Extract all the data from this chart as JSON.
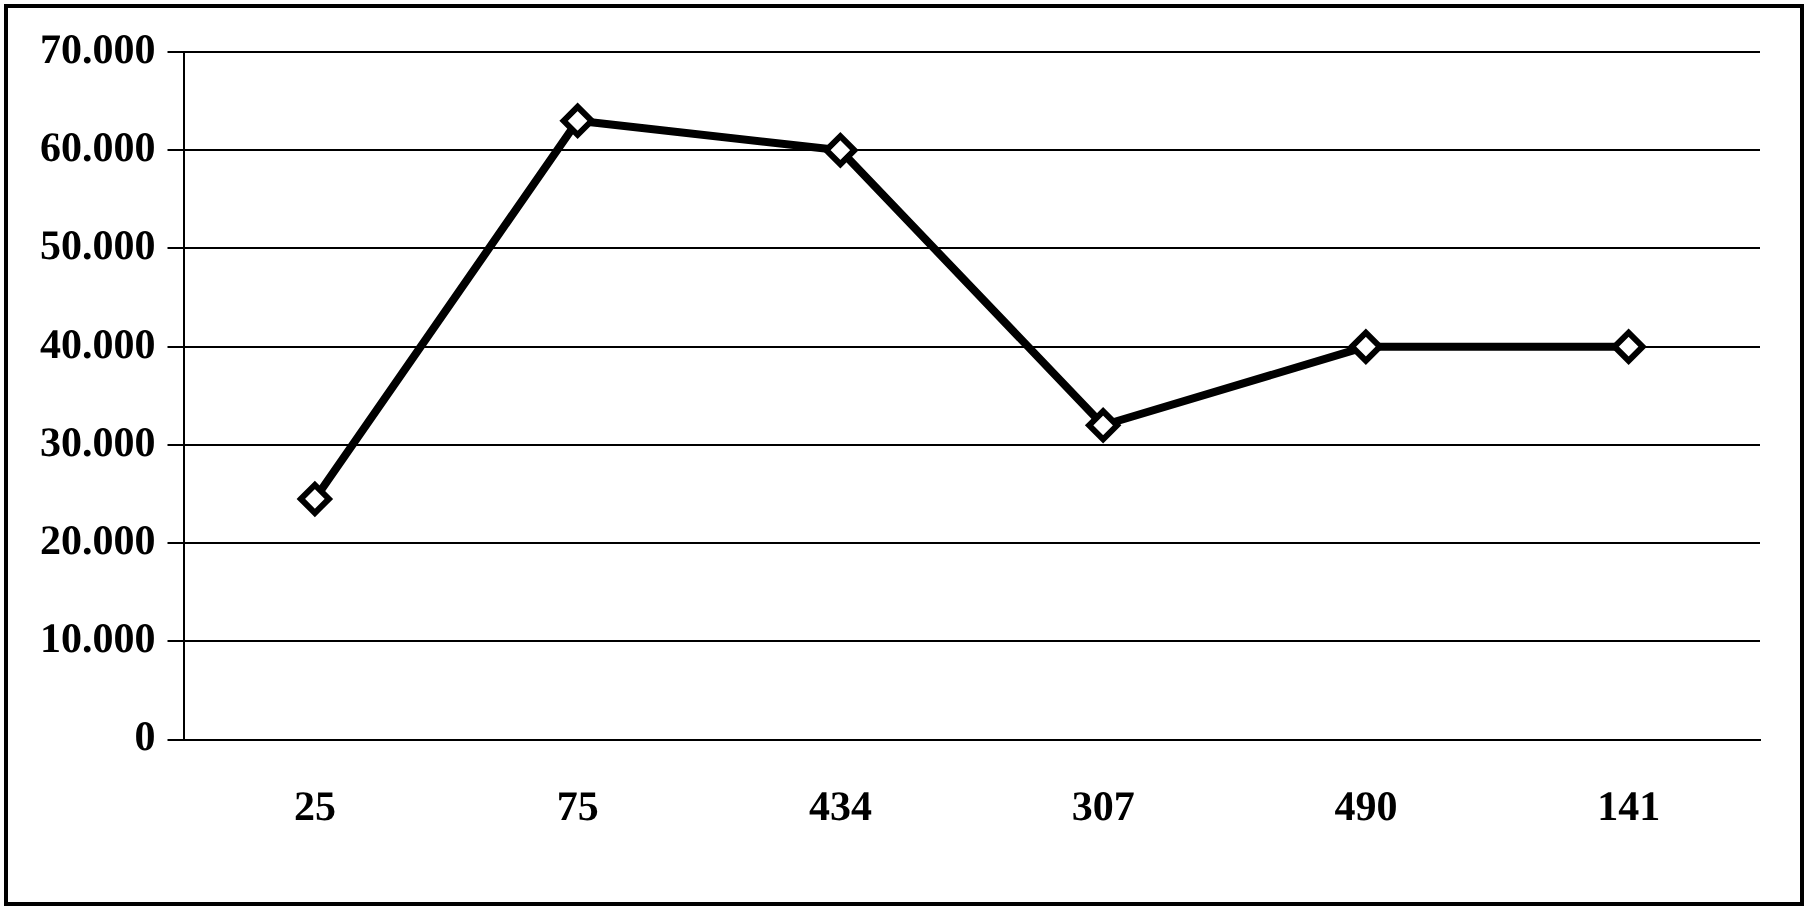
{
  "chart_data": {
    "type": "line",
    "categories": [
      "25",
      "75",
      "434",
      "307",
      "490",
      "141"
    ],
    "series": [
      {
        "color": "#000000",
        "values": [
          24500,
          63000,
          60000,
          32000,
          40000,
          40000
        ]
      }
    ],
    "ylim": [
      0,
      70000
    ],
    "yticks": [
      0,
      {
        "value": 10000,
        "label": "10.000"
      },
      {
        "value": 20000,
        "label": "20.000"
      },
      {
        "value": 30000,
        "label": "30.000"
      },
      {
        "value": 40000,
        "label": "40.000"
      },
      {
        "value": 50000,
        "label": "50.000"
      },
      {
        "value": 60000,
        "label": "60.000"
      },
      {
        "value": 70000,
        "label": "70.000"
      }
    ],
    "grid": "y",
    "legend": false,
    "marker": "diamond",
    "line_style": "solid"
  }
}
